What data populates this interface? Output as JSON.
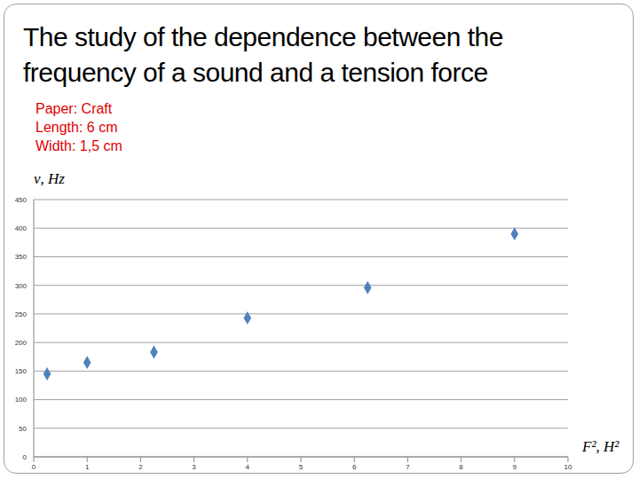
{
  "chart_data": {
    "type": "scatter",
    "title": "The study of the dependence between the frequency of a sound and a tension force",
    "annotations": [
      "Paper: Craft",
      "Length: 6 cm",
      "Width: 1,5 cm"
    ],
    "x_label": "F², H²",
    "y_label": "ν, Hz",
    "x": [
      0.25,
      1,
      2.25,
      4,
      6.25,
      9
    ],
    "values": [
      145,
      165,
      183,
      243,
      296,
      390
    ],
    "color": "#4f81bd",
    "marker": "diamond",
    "xlim": [
      0,
      10
    ],
    "xticks": [
      0,
      1,
      2,
      3,
      4,
      5,
      6,
      7,
      8,
      9,
      10
    ],
    "ylim": [
      0,
      450
    ],
    "yticks": [
      0,
      50,
      100,
      150,
      200,
      250,
      300,
      350,
      400,
      450
    ],
    "grid": true
  }
}
